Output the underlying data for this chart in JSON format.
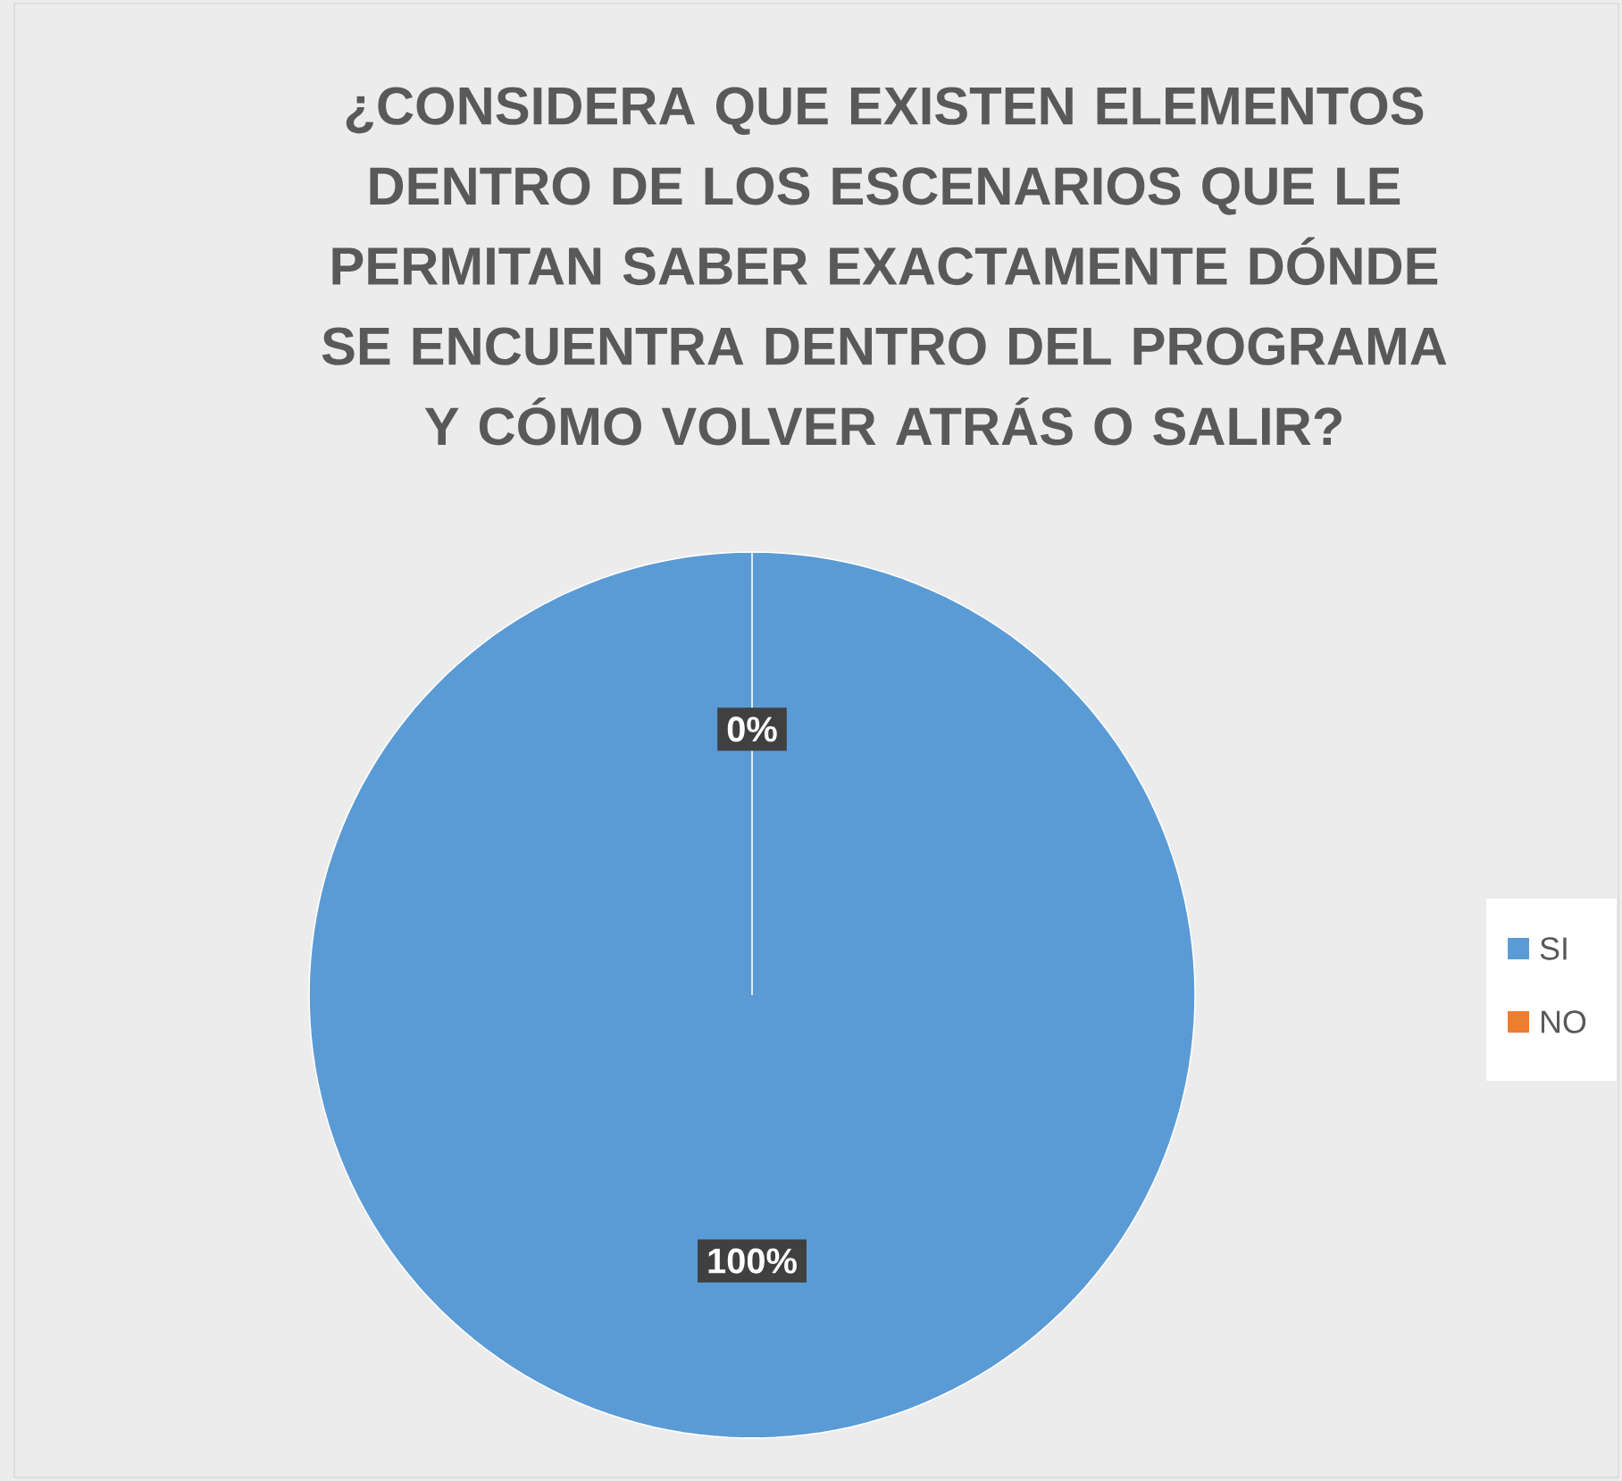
{
  "chart_data": {
    "type": "pie",
    "title": "¿CONSIDERA QUE EXISTEN ELEMENTOS DENTRO DE LOS ESCENARIOS QUE LE PERMITAN SABER EXACTAMENTE DÓNDE SE ENCUENTRA DENTRO DEL PROGRAMA Y CÓMO VOLVER ATRÁS O SALIR?",
    "categories": [
      "SI",
      "NO"
    ],
    "values": [
      100,
      0
    ],
    "colors": [
      "#5b9bd5",
      "#ed7d31"
    ],
    "value_labels": [
      "100%",
      "0%"
    ],
    "legend": "right"
  }
}
